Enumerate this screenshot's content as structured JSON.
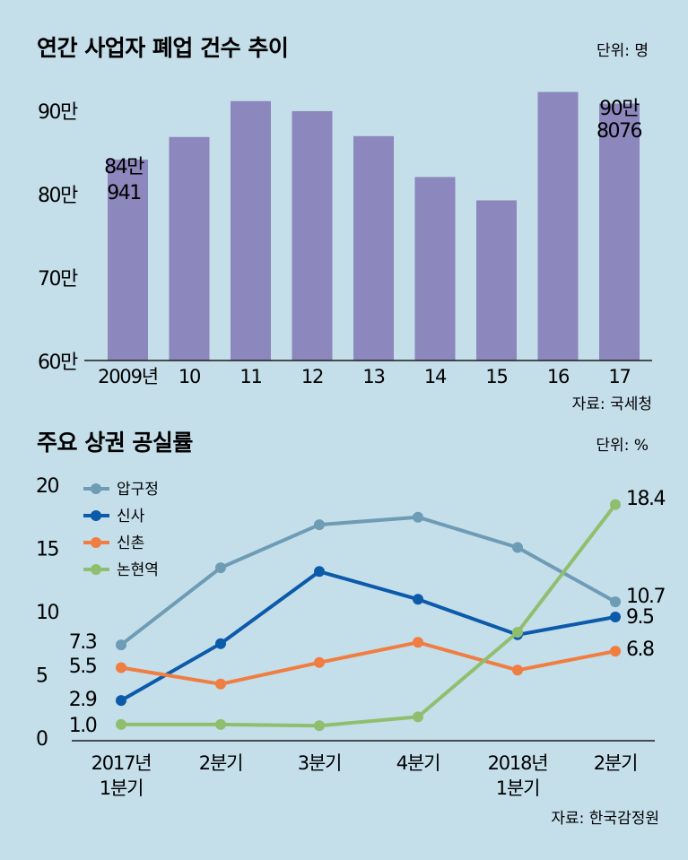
{
  "bar_chart": {
    "title": "연간 사업자 폐업 건수 추이",
    "unit": "단위: 명",
    "source": "자료: 국세청",
    "y_ticks": [
      "90만",
      "80만",
      "70만",
      "60만"
    ],
    "first_label": [
      "84만",
      "941"
    ],
    "last_label": [
      "90만",
      "8076"
    ]
  },
  "line_chart": {
    "title": "주요 상권 공실률",
    "unit": "단위: %",
    "source": "자료: 한국감정원",
    "y_ticks": [
      "20",
      "15",
      "10",
      "5",
      "0"
    ],
    "x_labels": [
      [
        "2017년",
        "1분기"
      ],
      [
        "2분기"
      ],
      [
        "3분기"
      ],
      [
        "4분기"
      ],
      [
        "2018년",
        "1분기"
      ],
      [
        "2분기"
      ]
    ],
    "start_labels": [
      "7.3",
      "5.5",
      "2.9",
      "1.0"
    ],
    "end_labels": [
      "18.4",
      "10.7",
      "9.5",
      "6.8"
    ]
  },
  "chart_data": [
    {
      "type": "bar",
      "title": "연간 사업자 폐업 건수 추이",
      "unit": "명",
      "categories": [
        "2009년",
        "10",
        "11",
        "12",
        "13",
        "14",
        "15",
        "16",
        "17"
      ],
      "values": [
        840941,
        868000,
        911000,
        899000,
        869000,
        820000,
        792000,
        922000,
        908076
      ],
      "ylim": [
        600000,
        950000
      ],
      "yticks": [
        600000,
        700000,
        800000,
        900000
      ],
      "color": "#8c87bd"
    },
    {
      "type": "line",
      "title": "주요 상권 공실률",
      "unit": "%",
      "categories": [
        "2017년 1분기",
        "2분기",
        "3분기",
        "4분기",
        "2018년 1분기",
        "2분기"
      ],
      "ylim": [
        0,
        20
      ],
      "yticks": [
        0,
        5,
        10,
        15,
        20
      ],
      "legend_position": "top-left",
      "series": [
        {
          "name": "압구정",
          "color": "#6e9cb5",
          "values": [
            7.3,
            13.4,
            16.8,
            17.4,
            15.0,
            10.7
          ]
        },
        {
          "name": "신사",
          "color": "#0c5aaa",
          "values": [
            2.9,
            7.4,
            13.1,
            10.9,
            8.1,
            9.5
          ]
        },
        {
          "name": "신촌",
          "color": "#f07d41",
          "values": [
            5.5,
            4.2,
            5.9,
            7.5,
            5.3,
            6.8
          ]
        },
        {
          "name": "논현역",
          "color": "#8fbf6e",
          "values": [
            1.0,
            1.0,
            0.9,
            1.6,
            8.3,
            18.4
          ]
        }
      ]
    }
  ]
}
